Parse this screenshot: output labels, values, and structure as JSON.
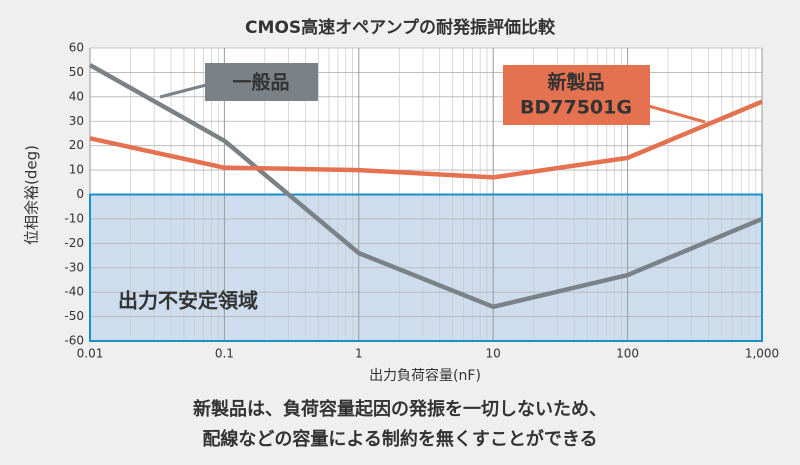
{
  "chart_data": {
    "type": "line",
    "title": "CMOS高速オペアンプの耐発振評価比較",
    "x_label": "出力負荷容量(nF)",
    "y_label": "位相余裕(deg)",
    "x": [
      0.01,
      0.1,
      1,
      10,
      100,
      1000
    ],
    "series": [
      {
        "name": "一般品",
        "color": "#7b8287",
        "values": [
          53,
          22,
          -24,
          -46,
          -33,
          -10
        ]
      },
      {
        "name": "新製品",
        "subname": "BD77501G",
        "color": "#e4714f",
        "values": [
          23,
          11,
          10,
          7,
          15,
          38
        ]
      }
    ],
    "x_log": true,
    "xlim": [
      0.01,
      1000
    ],
    "ylim": [
      -60,
      60
    ],
    "xticks": [
      0.01,
      0.1,
      1,
      10,
      100,
      {
        "value": 1000,
        "label": "1,000"
      }
    ],
    "yticks": [
      -60,
      -50,
      -40,
      -30,
      -20,
      -10,
      0,
      10,
      20,
      30,
      40,
      50,
      60
    ],
    "grid": true,
    "region": {
      "label": "出力不安定領域",
      "color": "#c8d9ec",
      "edge": "#1a8fc8",
      "ylim": [
        -60,
        0
      ]
    },
    "caption": [
      "新製品は、負荷容量起因の発振を一切しないため、",
      "配線などの容量による制約を無くすことができる"
    ]
  }
}
